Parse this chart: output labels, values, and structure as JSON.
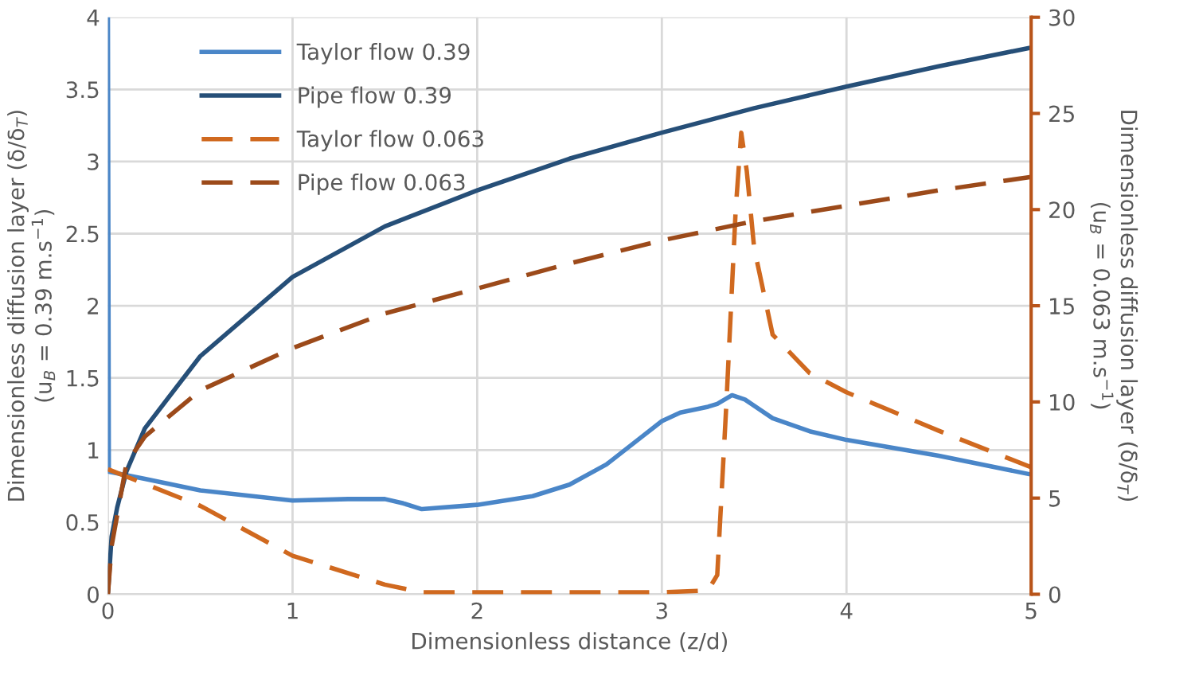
{
  "chart_data": {
    "type": "line",
    "xlabel": "Dimensionless distance (z/d)",
    "ylabel": "Dimensionless diffusion layer (δ/δ$_{T}$)\n(u$_{B}$ = 0.39 m.s$^{−1}$)",
    "y2label": "Dimensionless diffusion layer (δ/δ$_{T}$)\n(u$_{B}$ = 0.063 m.s$^{−1}$)",
    "xlim": [
      0,
      5
    ],
    "xticks": [
      0,
      1,
      2,
      3,
      4,
      5
    ],
    "ylim": [
      0,
      4
    ],
    "yticks": [
      0,
      0.5,
      1,
      1.5,
      2,
      2.5,
      3,
      3.5,
      4
    ],
    "y2lim": [
      0,
      30
    ],
    "y2ticks": [
      0,
      5,
      10,
      15,
      20,
      25,
      30
    ],
    "grid": true,
    "legend": "top left",
    "marker": "none",
    "series": [
      {
        "name": "Taylor flow 0.39",
        "color": "#4a86c8",
        "line_style": "solid",
        "x": [
          0,
          0.005,
          0.2,
          0.5,
          1,
          1.3,
          1.5,
          1.6,
          1.7,
          2,
          2.3,
          2.5,
          2.7,
          2.9,
          3.0,
          3.1,
          3.25,
          3.3,
          3.38,
          3.45,
          3.6,
          3.8,
          4,
          4.5,
          5
        ],
        "values": [
          4,
          0.85,
          0.8,
          0.72,
          0.65,
          0.66,
          0.66,
          0.63,
          0.59,
          0.62,
          0.68,
          0.76,
          0.9,
          1.1,
          1.2,
          1.26,
          1.3,
          1.32,
          1.38,
          1.35,
          1.22,
          1.13,
          1.07,
          0.96,
          0.83
        ]
      },
      {
        "name": "Pipe flow 0.39",
        "color": "#264f78",
        "line_style": "solid",
        "x": [
          0,
          0.02,
          0.05,
          0.1,
          0.2,
          0.5,
          1,
          1.5,
          2,
          2.5,
          3,
          3.5,
          4,
          4.5,
          5
        ],
        "values": [
          0,
          0.4,
          0.6,
          0.85,
          1.15,
          1.65,
          2.2,
          2.55,
          2.8,
          3.02,
          3.2,
          3.37,
          3.52,
          3.66,
          3.79
        ]
      },
      {
        "name": "Taylor flow 0.063",
        "color": "#d0691f",
        "line_style": "dashed",
        "axis": "y2",
        "x": [
          0,
          0.5,
          1,
          1.5,
          1.7,
          2,
          3,
          3.25,
          3.3,
          3.35,
          3.4,
          3.43,
          3.46,
          3.5,
          3.6,
          3.8,
          4,
          4.5,
          5
        ],
        "values": [
          6.5,
          4.6,
          2.0,
          0.5,
          0.1,
          0.1,
          0.1,
          0.2,
          1.0,
          10,
          20,
          24,
          22,
          18,
          13.5,
          11.5,
          10.5,
          8.5,
          6.6
        ]
      },
      {
        "name": "Pipe flow 0.063",
        "color": "#9c4a1a",
        "line_style": "dashed",
        "axis": "y2",
        "x": [
          0,
          0.02,
          0.05,
          0.1,
          0.2,
          0.5,
          1,
          1.5,
          2,
          2.5,
          3,
          3.5,
          4,
          4.5,
          5
        ],
        "values": [
          0,
          2.5,
          4.1,
          6.8,
          8.2,
          10.6,
          12.8,
          14.6,
          15.9,
          17.2,
          18.4,
          19.4,
          20.2,
          21.0,
          21.7
        ]
      }
    ]
  }
}
